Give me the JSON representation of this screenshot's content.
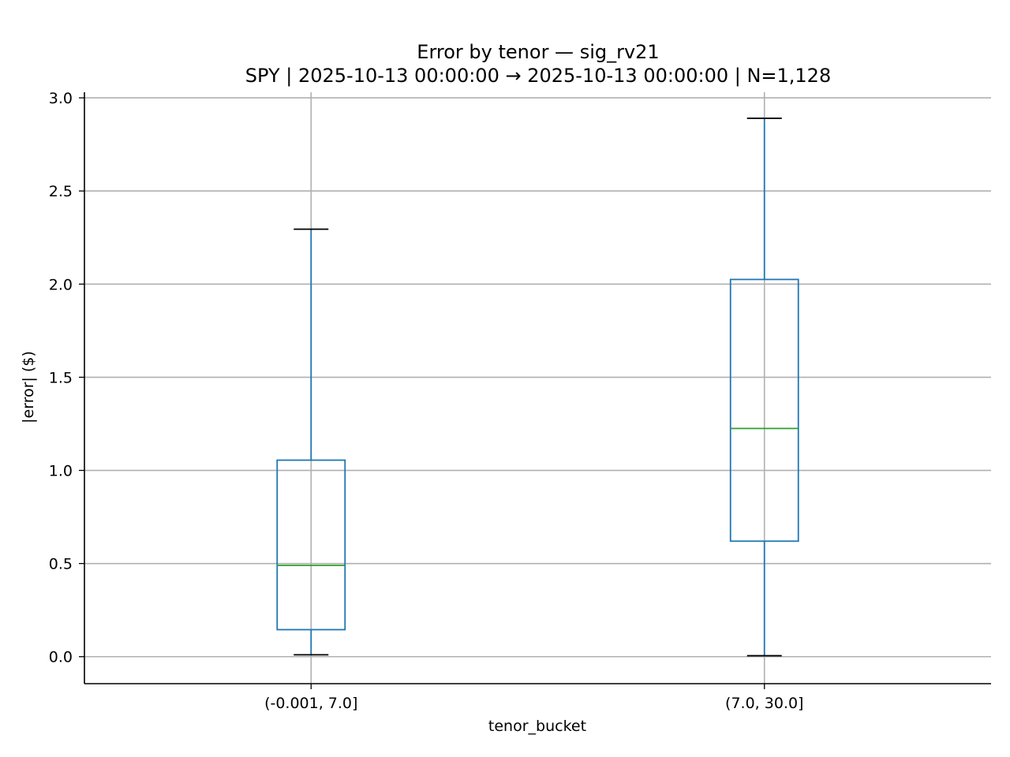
{
  "chart_data": {
    "type": "boxplot",
    "title": "Error by tenor — sig_rv21",
    "subtitle": "SPY | 2025-10-13 00:00:00 → 2025-10-13 00:00:00 | N=1,128",
    "xlabel": "tenor_bucket",
    "ylabel": "|error| ($)",
    "ylim": [
      -0.145,
      3.03
    ],
    "yticks": [
      "0.0",
      "0.5",
      "1.0",
      "1.5",
      "2.0",
      "2.5",
      "3.0"
    ],
    "yticks_values": [
      0.0,
      0.5,
      1.0,
      1.5,
      2.0,
      2.5,
      3.0
    ],
    "grid": true,
    "categories": [
      "(-0.001, 7.0]",
      "(7.0, 30.0]"
    ],
    "boxes": [
      {
        "category": "(-0.001, 7.0]",
        "whislo": 0.01,
        "q1": 0.145,
        "median": 0.49,
        "q3": 1.055,
        "whishi": 2.295
      },
      {
        "category": "(7.0, 30.0]",
        "whislo": 0.005,
        "q1": 0.62,
        "median": 1.225,
        "q3": 2.025,
        "whishi": 2.89
      }
    ],
    "colors": {
      "box": "#1f77b4",
      "median": "#2ca02c",
      "whisker_cap": "#000000",
      "grid": "#b0b0b0",
      "axis": "#000000"
    }
  }
}
